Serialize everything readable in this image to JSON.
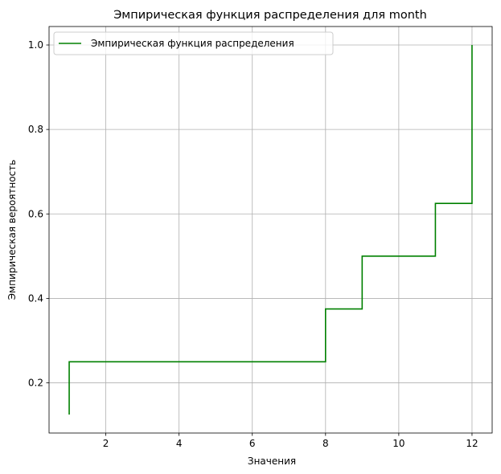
{
  "chart_data": {
    "type": "line",
    "drawstyle": "steps-post",
    "title": "Эмпирическая функция распределения для month",
    "xlabel": "Значения",
    "ylabel": "Эмпирическая вероятность",
    "xlim": [
      0.45,
      12.55
    ],
    "ylim": [
      0.08125,
      1.04375
    ],
    "x_ticks": [
      2,
      4,
      6,
      8,
      10,
      12
    ],
    "y_ticks": [
      0.2,
      0.4,
      0.6,
      0.8,
      1.0
    ],
    "x_tick_labels": [
      "2",
      "4",
      "6",
      "8",
      "10",
      "12"
    ],
    "y_tick_labels": [
      "0.2",
      "0.4",
      "0.6",
      "0.8",
      "1.0"
    ],
    "grid": true,
    "legend_position": "top-left",
    "series": [
      {
        "name": "Эмпирическая функция распределения",
        "color": "#008000",
        "x": [
          1,
          1,
          8,
          9,
          11,
          12,
          12
        ],
        "y": [
          0.125,
          0.25,
          0.375,
          0.5,
          0.625,
          0.625,
          1.0
        ]
      }
    ]
  }
}
